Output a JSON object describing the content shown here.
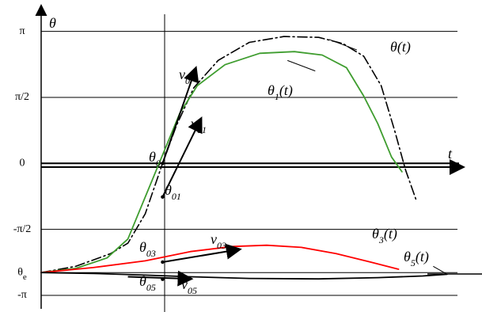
{
  "chart_data": {
    "type": "line",
    "xlabel": "t",
    "ylabel": "θ",
    "yticks": [
      {
        "label": "π",
        "value": 3.1416
      },
      {
        "label": "π/2",
        "value": 1.5708
      },
      {
        "label": "0",
        "value": 0
      },
      {
        "label": "-π/2",
        "value": -1.5708
      },
      {
        "label": "θe",
        "value": -2.6
      },
      {
        "label": "-π",
        "value": -3.1416
      }
    ],
    "grid": true,
    "legend": "none",
    "series": [
      {
        "name": "θ(t)",
        "color": "#000000",
        "style": "dash-dot",
        "points": [
          [
            -0.35,
            -2.6
          ],
          [
            -0.25,
            -2.45
          ],
          [
            -0.15,
            -2.15
          ],
          [
            -0.1,
            -1.9
          ],
          [
            -0.05,
            -1.2
          ],
          [
            0,
            0
          ],
          [
            0.04,
            0.9
          ],
          [
            0.09,
            1.8
          ],
          [
            0.16,
            2.45
          ],
          [
            0.25,
            2.88
          ],
          [
            0.35,
            3.02
          ],
          [
            0.45,
            3.0
          ],
          [
            0.52,
            2.85
          ],
          [
            0.58,
            2.55
          ],
          [
            0.63,
            1.85
          ],
          [
            0.67,
            0.75
          ],
          [
            0.7,
            -0.15
          ],
          [
            0.73,
            -0.85
          ]
        ]
      },
      {
        "name": "θ1(t)",
        "color": "#3f9d2f",
        "style": "solid",
        "points": [
          [
            -0.35,
            -2.6
          ],
          [
            -0.25,
            -2.5
          ],
          [
            -0.16,
            -2.25
          ],
          [
            -0.1,
            -1.8
          ],
          [
            -0.04,
            -0.6
          ],
          [
            0,
            0.2
          ],
          [
            0.05,
            1.2
          ],
          [
            0.1,
            1.85
          ],
          [
            0.18,
            2.35
          ],
          [
            0.28,
            2.62
          ],
          [
            0.38,
            2.66
          ],
          [
            0.46,
            2.58
          ],
          [
            0.53,
            2.28
          ],
          [
            0.58,
            1.6
          ],
          [
            0.62,
            0.95
          ],
          [
            0.66,
            0.15
          ],
          [
            0.69,
            -0.2
          ]
        ]
      },
      {
        "name": "θ3(t)",
        "color": "#ff0000",
        "style": "solid",
        "points": [
          [
            -0.35,
            -2.6
          ],
          [
            -0.2,
            -2.48
          ],
          [
            -0.05,
            -2.32
          ],
          [
            0.08,
            -2.1
          ],
          [
            0.2,
            -1.98
          ],
          [
            0.3,
            -1.95
          ],
          [
            0.4,
            -2.0
          ],
          [
            0.5,
            -2.15
          ],
          [
            0.6,
            -2.35
          ],
          [
            0.68,
            -2.52
          ]
        ]
      },
      {
        "name": "θ5(t)",
        "color": "#000000",
        "style": "solid",
        "points": [
          [
            -0.35,
            -2.6
          ],
          [
            -0.2,
            -2.62
          ],
          [
            -0.05,
            -2.66
          ],
          [
            0.08,
            -2.7
          ],
          [
            0.25,
            -2.74
          ],
          [
            0.45,
            -2.75
          ],
          [
            0.62,
            -2.72
          ],
          [
            0.75,
            -2.68
          ],
          [
            0.82,
            -2.64
          ]
        ]
      }
    ],
    "annotations": [
      {
        "text": "θ0",
        "x": 0,
        "y": 0
      },
      {
        "text": "θ01",
        "x": 0,
        "y": -0.8
      },
      {
        "text": "θ03",
        "x": 0,
        "y": -2.35
      },
      {
        "text": "θ05",
        "x": 0,
        "y": -2.76
      },
      {
        "text": "v0",
        "x": 0.1,
        "y": 2.2
      },
      {
        "text": "v01",
        "x": 0.13,
        "y": 1.05
      },
      {
        "text": "v03",
        "x": 0.18,
        "y": -2.06
      },
      {
        "text": "v05",
        "x": 0.08,
        "y": -2.82
      },
      {
        "text": "θ(t)",
        "x": 0.58,
        "y": 2.9
      },
      {
        "text": "θ1(t)",
        "x": 0.44,
        "y": 2.15
      },
      {
        "text": "θ3(t)",
        "x": 0.71,
        "y": -1.92
      },
      {
        "text": "θ5(t)",
        "x": 0.82,
        "y": -2.3
      }
    ],
    "xlim": [
      -0.35,
      0.85
    ],
    "ylim": [
      -3.35,
      3.55
    ]
  }
}
